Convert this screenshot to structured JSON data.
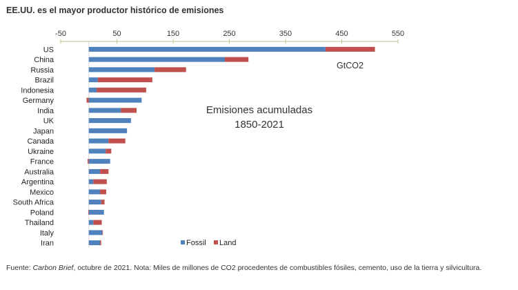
{
  "title": "EE.UU. es el mayor productor histórico de emisiones",
  "source": {
    "prefix": "Fuente: ",
    "publication": "Carbon Brief",
    "rest": ", octubre de 2021. Nota: Miles de millones de CO2 procedentes de combustibles fósiles, cemento, uso de la tierra y silvicultura."
  },
  "colors": {
    "fossil": "#4f81bd",
    "land": "#c0504d",
    "axis": "#b8c48a"
  },
  "chart_data": {
    "type": "bar",
    "orientation": "horizontal",
    "stacked": true,
    "unit_label": "GtCO2",
    "annotation": [
      "Emisiones acumuladas",
      "1850-2021"
    ],
    "xlim": [
      -50,
      550
    ],
    "x_ticks": [
      -50,
      50,
      150,
      250,
      350,
      450,
      550
    ],
    "x_axis_position": "top",
    "grid": false,
    "legend": {
      "position": "bottom-center",
      "entries": [
        "Fossil",
        "Land"
      ]
    },
    "categories": [
      "US",
      "China",
      "Russia",
      "Brazil",
      "Indonesia",
      "Germany",
      "India",
      "UK",
      "Japan",
      "Canada",
      "Ukraine",
      "France",
      "Australia",
      "Argentina",
      "Mexico",
      "South Africa",
      "Poland",
      "Thailand",
      "Italy",
      "Iran"
    ],
    "series": [
      {
        "name": "Fossil",
        "values": [
          421,
          242,
          117,
          16,
          14,
          94,
          57,
          75,
          68,
          35,
          30,
          38,
          20,
          8,
          20,
          22,
          27,
          8,
          24,
          20
        ]
      },
      {
        "name": "Land",
        "values": [
          88,
          42,
          56,
          97,
          88,
          -4,
          28,
          0,
          0,
          30,
          10,
          -2,
          15,
          24,
          11,
          6,
          -1,
          15,
          1,
          2
        ]
      }
    ]
  }
}
